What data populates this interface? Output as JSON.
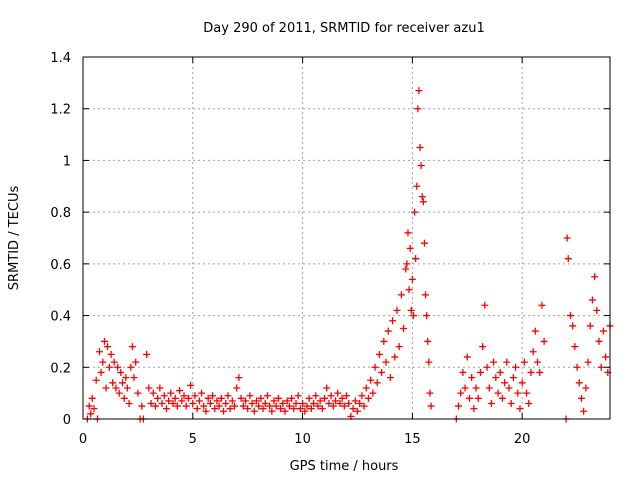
{
  "chart_data": {
    "type": "scatter",
    "title": "Day 290 of 2011, SRMTID for receiver azu1",
    "xlabel": "GPS time / hours",
    "ylabel": "SRMTID / TECUs",
    "xlim": [
      0,
      24
    ],
    "ylim": [
      0,
      1.4
    ],
    "xticks": [
      0,
      5,
      10,
      15,
      20
    ],
    "xtick_labels": [
      "0",
      "5",
      "10",
      "15",
      "20"
    ],
    "yticks": [
      0,
      0.2,
      0.4,
      0.6,
      0.8,
      1,
      1.2,
      1.4
    ],
    "ytick_labels": [
      "0",
      "0.2",
      "0.4",
      "0.6",
      "0.8",
      "1",
      "1.2",
      "1.4"
    ],
    "grid": true,
    "marker": "+",
    "color": "#ff0000",
    "series": [
      {
        "name": "SRMTID",
        "points": [
          [
            0.2,
            0.0
          ],
          [
            0.28,
            0.05
          ],
          [
            0.35,
            0.02
          ],
          [
            0.42,
            0.08
          ],
          [
            0.5,
            0.04
          ],
          [
            0.6,
            0.15
          ],
          [
            0.66,
            0.0
          ],
          [
            0.75,
            0.26
          ],
          [
            0.82,
            0.18
          ],
          [
            0.9,
            0.22
          ],
          [
            0.98,
            0.3
          ],
          [
            1.05,
            0.12
          ],
          [
            1.12,
            0.28
          ],
          [
            1.2,
            0.2
          ],
          [
            1.28,
            0.25
          ],
          [
            1.35,
            0.14
          ],
          [
            1.42,
            0.22
          ],
          [
            1.5,
            0.12
          ],
          [
            1.58,
            0.2
          ],
          [
            1.65,
            0.1
          ],
          [
            1.72,
            0.18
          ],
          [
            1.8,
            0.14
          ],
          [
            1.88,
            0.08
          ],
          [
            1.95,
            0.16
          ],
          [
            2.02,
            0.12
          ],
          [
            2.1,
            0.06
          ],
          [
            2.18,
            0.2
          ],
          [
            2.25,
            0.28
          ],
          [
            2.32,
            0.16
          ],
          [
            2.4,
            0.22
          ],
          [
            2.5,
            0.1
          ],
          [
            2.6,
            0.0
          ],
          [
            2.68,
            0.05
          ],
          [
            2.75,
            0.0
          ],
          [
            2.9,
            0.25
          ],
          [
            3.0,
            0.12
          ],
          [
            3.1,
            0.06
          ],
          [
            3.2,
            0.1
          ],
          [
            3.3,
            0.05
          ],
          [
            3.4,
            0.08
          ],
          [
            3.5,
            0.12
          ],
          [
            3.6,
            0.06
          ],
          [
            3.7,
            0.09
          ],
          [
            3.8,
            0.04
          ],
          [
            3.9,
            0.07
          ],
          [
            4.0,
            0.1
          ],
          [
            4.1,
            0.06
          ],
          [
            4.2,
            0.08
          ],
          [
            4.3,
            0.05
          ],
          [
            4.4,
            0.11
          ],
          [
            4.5,
            0.07
          ],
          [
            4.6,
            0.09
          ],
          [
            4.7,
            0.05
          ],
          [
            4.8,
            0.08
          ],
          [
            4.9,
            0.13
          ],
          [
            5.0,
            0.06
          ],
          [
            5.1,
            0.09
          ],
          [
            5.2,
            0.04
          ],
          [
            5.3,
            0.07
          ],
          [
            5.4,
            0.1
          ],
          [
            5.5,
            0.05
          ],
          [
            5.6,
            0.03
          ],
          [
            5.7,
            0.08
          ],
          [
            5.8,
            0.06
          ],
          [
            5.9,
            0.09
          ],
          [
            6.0,
            0.04
          ],
          [
            6.1,
            0.07
          ],
          [
            6.2,
            0.05
          ],
          [
            6.3,
            0.08
          ],
          [
            6.4,
            0.03
          ],
          [
            6.5,
            0.06
          ],
          [
            6.6,
            0.09
          ],
          [
            6.7,
            0.04
          ],
          [
            6.8,
            0.07
          ],
          [
            6.9,
            0.05
          ],
          [
            7.0,
            0.12
          ],
          [
            7.1,
            0.16
          ],
          [
            7.2,
            0.08
          ],
          [
            7.3,
            0.05
          ],
          [
            7.4,
            0.07
          ],
          [
            7.5,
            0.04
          ],
          [
            7.6,
            0.09
          ],
          [
            7.7,
            0.06
          ],
          [
            7.8,
            0.03
          ],
          [
            7.9,
            0.07
          ],
          [
            8.0,
            0.05
          ],
          [
            8.1,
            0.08
          ],
          [
            8.2,
            0.04
          ],
          [
            8.3,
            0.06
          ],
          [
            8.4,
            0.09
          ],
          [
            8.5,
            0.05
          ],
          [
            8.6,
            0.03
          ],
          [
            8.7,
            0.07
          ],
          [
            8.8,
            0.05
          ],
          [
            8.9,
            0.08
          ],
          [
            9.0,
            0.04
          ],
          [
            9.1,
            0.06
          ],
          [
            9.2,
            0.03
          ],
          [
            9.3,
            0.07
          ],
          [
            9.4,
            0.05
          ],
          [
            9.5,
            0.08
          ],
          [
            9.6,
            0.04
          ],
          [
            9.7,
            0.06
          ],
          [
            9.8,
            0.09
          ],
          [
            9.9,
            0.04
          ],
          [
            10.0,
            0.06
          ],
          [
            10.1,
            0.03
          ],
          [
            10.2,
            0.05
          ],
          [
            10.3,
            0.08
          ],
          [
            10.4,
            0.04
          ],
          [
            10.5,
            0.06
          ],
          [
            10.6,
            0.09
          ],
          [
            10.7,
            0.05
          ],
          [
            10.8,
            0.07
          ],
          [
            10.9,
            0.04
          ],
          [
            11.0,
            0.08
          ],
          [
            11.1,
            0.12
          ],
          [
            11.2,
            0.06
          ],
          [
            11.3,
            0.09
          ],
          [
            11.4,
            0.05
          ],
          [
            11.5,
            0.07
          ],
          [
            11.6,
            0.1
          ],
          [
            11.7,
            0.06
          ],
          [
            11.8,
            0.08
          ],
          [
            11.9,
            0.05
          ],
          [
            12.0,
            0.09
          ],
          [
            12.1,
            0.06
          ],
          [
            12.2,
            0.01
          ],
          [
            12.3,
            0.04
          ],
          [
            12.4,
            0.07
          ],
          [
            12.5,
            0.03
          ],
          [
            12.6,
            0.06
          ],
          [
            12.7,
            0.09
          ],
          [
            12.8,
            0.05
          ],
          [
            12.9,
            0.12
          ],
          [
            13.0,
            0.08
          ],
          [
            13.1,
            0.15
          ],
          [
            13.2,
            0.1
          ],
          [
            13.3,
            0.2
          ],
          [
            13.4,
            0.14
          ],
          [
            13.5,
            0.25
          ],
          [
            13.6,
            0.18
          ],
          [
            13.7,
            0.3
          ],
          [
            13.8,
            0.22
          ],
          [
            13.9,
            0.34
          ],
          [
            14.0,
            0.16
          ],
          [
            14.1,
            0.38
          ],
          [
            14.2,
            0.24
          ],
          [
            14.3,
            0.42
          ],
          [
            14.4,
            0.28
          ],
          [
            14.5,
            0.48
          ],
          [
            14.6,
            0.35
          ],
          [
            14.7,
            0.58
          ],
          [
            14.75,
            0.6
          ],
          [
            14.8,
            0.72
          ],
          [
            14.85,
            0.5
          ],
          [
            14.9,
            0.66
          ],
          [
            14.95,
            0.42
          ],
          [
            15.0,
            0.54
          ],
          [
            15.05,
            0.4
          ],
          [
            15.1,
            0.8
          ],
          [
            15.15,
            0.62
          ],
          [
            15.2,
            0.9
          ],
          [
            15.25,
            1.2
          ],
          [
            15.3,
            1.27
          ],
          [
            15.35,
            1.05
          ],
          [
            15.4,
            0.98
          ],
          [
            15.45,
            0.86
          ],
          [
            15.5,
            0.84
          ],
          [
            15.55,
            0.68
          ],
          [
            15.6,
            0.48
          ],
          [
            15.65,
            0.4
          ],
          [
            15.7,
            0.3
          ],
          [
            15.75,
            0.22
          ],
          [
            15.8,
            0.1
          ],
          [
            15.85,
            0.05
          ],
          [
            17.0,
            0.0
          ],
          [
            17.1,
            0.05
          ],
          [
            17.2,
            0.1
          ],
          [
            17.3,
            0.18
          ],
          [
            17.4,
            0.12
          ],
          [
            17.5,
            0.24
          ],
          [
            17.6,
            0.08
          ],
          [
            17.7,
            0.16
          ],
          [
            17.8,
            0.04
          ],
          [
            17.9,
            0.12
          ],
          [
            18.0,
            0.08
          ],
          [
            18.1,
            0.18
          ],
          [
            18.2,
            0.28
          ],
          [
            18.3,
            0.44
          ],
          [
            18.4,
            0.2
          ],
          [
            18.5,
            0.12
          ],
          [
            18.6,
            0.06
          ],
          [
            18.7,
            0.22
          ],
          [
            18.8,
            0.16
          ],
          [
            18.9,
            0.1
          ],
          [
            19.0,
            0.18
          ],
          [
            19.1,
            0.08
          ],
          [
            19.2,
            0.14
          ],
          [
            19.3,
            0.22
          ],
          [
            19.4,
            0.12
          ],
          [
            19.5,
            0.06
          ],
          [
            19.6,
            0.16
          ],
          [
            19.7,
            0.2
          ],
          [
            19.8,
            0.1
          ],
          [
            19.9,
            0.04
          ],
          [
            20.0,
            0.14
          ],
          [
            20.1,
            0.22
          ],
          [
            20.2,
            0.1
          ],
          [
            20.3,
            0.06
          ],
          [
            20.4,
            0.18
          ],
          [
            20.5,
            0.26
          ],
          [
            20.6,
            0.34
          ],
          [
            20.7,
            0.22
          ],
          [
            20.8,
            0.18
          ],
          [
            20.9,
            0.44
          ],
          [
            21.0,
            0.3
          ],
          [
            22.0,
            0.0
          ],
          [
            22.05,
            0.7
          ],
          [
            22.1,
            0.62
          ],
          [
            22.2,
            0.4
          ],
          [
            22.3,
            0.36
          ],
          [
            22.4,
            0.28
          ],
          [
            22.5,
            0.2
          ],
          [
            22.6,
            0.14
          ],
          [
            22.7,
            0.08
          ],
          [
            22.8,
            0.03
          ],
          [
            22.9,
            0.12
          ],
          [
            23.0,
            0.22
          ],
          [
            23.1,
            0.36
          ],
          [
            23.2,
            0.46
          ],
          [
            23.3,
            0.55
          ],
          [
            23.4,
            0.42
          ],
          [
            23.5,
            0.3
          ],
          [
            23.6,
            0.2
          ],
          [
            23.7,
            0.34
          ],
          [
            23.8,
            0.24
          ],
          [
            23.9,
            0.18
          ],
          [
            24.0,
            0.36
          ]
        ]
      }
    ]
  }
}
